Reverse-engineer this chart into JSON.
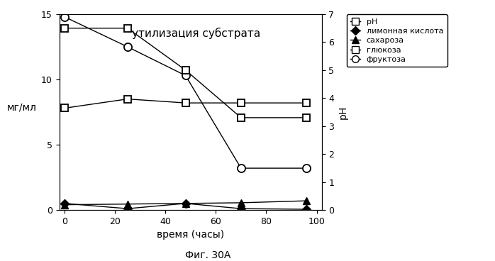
{
  "title": "утилизация субстрата",
  "xlabel": "время (часы)",
  "ylabel_left": "мг/мл",
  "ylabel_right": "pH",
  "caption": "Фиг. 30А",
  "x": [
    0,
    25,
    48,
    70,
    96
  ],
  "pH": [
    6.5,
    6.5,
    5.0,
    3.3,
    3.3
  ],
  "citric_acid": [
    0.5,
    0.1,
    0.5,
    0.1,
    0.05
  ],
  "sucrose": [
    0.4,
    0.45,
    0.5,
    0.55,
    0.7
  ],
  "glucose": [
    7.8,
    8.5,
    8.2,
    8.2,
    8.2
  ],
  "fructose": [
    14.8,
    12.5,
    10.3,
    3.2,
    3.2
  ],
  "ylim_left": [
    0,
    15
  ],
  "ylim_right": [
    0,
    7
  ],
  "yticks_left": [
    0,
    5,
    10,
    15
  ],
  "yticks_right": [
    0,
    1,
    2,
    3,
    4,
    5,
    6,
    7
  ],
  "xticks": [
    0,
    20,
    40,
    60,
    80,
    100
  ],
  "legend_pH": "pH",
  "legend_citric": "лимонная кислота",
  "legend_sucrose": "сахароза",
  "legend_glucose": "глюкоза",
  "legend_fructose": "фруктоза",
  "line_color": "black",
  "bg_color": "white"
}
